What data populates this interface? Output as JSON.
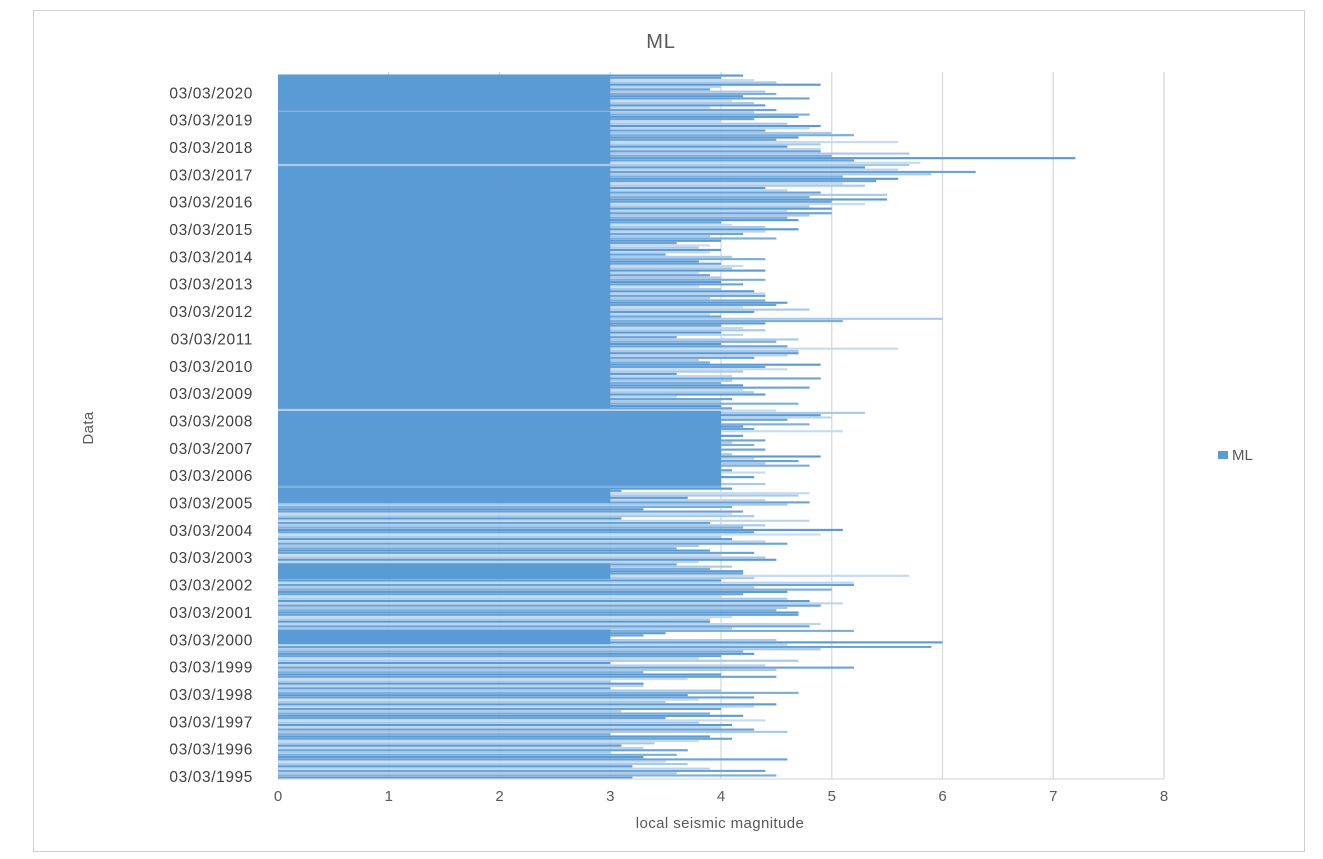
{
  "chart_data": {
    "type": "bar",
    "orientation": "horizontal",
    "title": "ML",
    "xlabel": "local seismic magnitude",
    "ylabel": "Data",
    "xlim": [
      0,
      8
    ],
    "x_ticks": [
      0,
      1,
      2,
      3,
      4,
      5,
      6,
      7,
      8
    ],
    "y_ticks": [
      "03/03/1995",
      "03/03/1996",
      "03/03/1997",
      "03/03/1998",
      "03/03/1999",
      "03/03/2000",
      "03/03/2001",
      "03/03/2002",
      "03/03/2003",
      "03/03/2004",
      "03/03/2005",
      "03/03/2006",
      "03/03/2007",
      "03/03/2008",
      "03/03/2009",
      "03/03/2010",
      "03/03/2011",
      "03/03/2012",
      "03/03/2013",
      "03/03/2014",
      "03/03/2015",
      "03/03/2016",
      "03/03/2017",
      "03/03/2018",
      "03/03/2019",
      "03/03/2020"
    ],
    "grid": true,
    "legend": {
      "position": "right",
      "entries": [
        "ML"
      ]
    },
    "series": [
      {
        "name": "ML",
        "color": "#5b9bd5",
        "y_start_year": 1995.0,
        "y_end_year": 2020.65,
        "values": [
          3.2,
          4.5,
          3.6,
          4.4,
          3.9,
          3.2,
          3.7,
          3.5,
          4.6,
          3.3,
          3.6,
          3.0,
          3.7,
          3.3,
          3.1,
          3.4,
          3.8,
          4.1,
          3.9,
          3.0,
          4.6,
          4.3,
          4.0,
          4.1,
          3.8,
          4.4,
          3.5,
          4.2,
          3.9,
          3.1,
          4.0,
          4.3,
          4.5,
          3.5,
          3.8,
          4.3,
          3.7,
          4.7,
          4.0,
          3.0,
          3.3,
          3.3,
          3.0,
          3.7,
          4.5,
          4.0,
          3.3,
          4.5,
          5.2,
          4.4,
          3.0,
          4.7,
          3.8,
          4.0,
          4.3,
          4.2,
          4.9,
          5.9,
          4.6,
          6.0,
          4.5,
          3.0,
          3.3,
          3.5,
          5.2,
          4.1,
          4.8,
          4.9,
          3.9,
          3.9,
          4.1,
          4.7,
          4.7,
          4.5,
          4.6,
          4.9,
          5.1,
          4.8,
          4.6,
          4.0,
          4.2,
          4.6,
          5.0,
          4.3,
          5.2,
          5.2,
          4.0,
          4.3,
          5.7,
          4.2,
          4.2,
          3.9,
          4.1,
          3.6,
          3.8,
          4.5,
          4.4,
          4.0,
          4.3,
          3.9,
          3.6,
          3.8,
          4.6,
          4.4,
          4.1,
          4.0,
          4.9,
          4.3,
          5.1,
          4.2,
          4.4,
          3.9,
          4.8,
          3.1,
          4.3,
          4.1,
          4.2,
          3.3,
          4.1,
          4.6,
          4.8,
          4.4,
          3.7,
          4.7,
          4.8,
          3.1,
          4.1,
          4.0,
          4.4,
          3.8,
          3.8,
          4.3,
          4.0,
          4.4,
          4.1,
          4.0,
          4.8,
          4.4,
          4.7,
          4.3,
          4.9,
          4.1,
          4.0,
          4.4,
          3.9,
          4.3,
          4.1,
          4.4,
          4.0,
          4.2,
          3.7,
          5.1,
          4.3,
          4.2,
          4.8,
          4.0,
          4.6,
          5.0,
          4.9,
          5.3,
          4.5,
          4.1,
          4.0,
          4.7,
          4.0,
          4.1,
          3.6,
          4.4,
          4.3,
          4.2,
          4.8,
          4.2,
          4.0,
          4.1,
          4.9,
          4.1,
          3.6,
          4.2,
          4.6,
          4.4,
          4.9,
          3.9,
          3.8,
          4.3,
          4.6,
          4.7,
          4.7,
          5.6,
          4.6,
          4.0,
          4.5,
          4.7,
          3.6,
          4.2,
          4.0,
          4.4,
          4.2,
          4.0,
          4.4,
          5.1,
          6.0,
          4.0,
          3.9,
          4.3,
          4.8,
          4.2,
          4.5,
          4.6,
          4.4,
          3.9,
          4.4,
          4.4,
          4.3,
          4.0,
          3.8,
          4.2,
          4.0,
          4.4,
          4.0,
          3.9,
          3.8,
          4.4,
          4.1,
          4.2,
          4.0,
          3.8,
          4.4,
          4.1,
          3.5,
          3.9,
          4.0,
          3.8,
          3.9,
          3.6,
          4.0,
          4.5,
          3.9,
          4.2,
          4.4,
          4.7,
          4.4,
          4.1,
          4.0,
          4.7,
          4.6,
          4.8,
          5.0,
          4.6,
          5.0,
          4.8,
          5.3,
          5.0,
          5.5,
          4.8,
          5.5,
          4.9,
          4.6,
          4.4,
          5.3,
          5.1,
          5.4,
          5.6,
          5.1,
          5.9,
          6.3,
          5.6,
          5.3,
          5.7,
          5.8,
          5.2,
          7.2,
          5.0,
          5.7,
          4.9,
          4.9,
          4.6,
          4.9,
          5.6,
          4.5,
          4.7,
          5.2,
          5.0,
          4.4,
          4.8,
          4.9,
          4.6,
          4.0,
          4.3,
          4.7,
          4.8,
          4.3,
          4.5,
          3.9,
          4.4,
          4.3,
          4.1,
          4.8,
          4.2,
          4.5,
          4.4,
          3.9,
          4.0,
          4.9,
          4.5,
          4.3,
          4.0,
          4.2
        ]
      }
    ]
  }
}
